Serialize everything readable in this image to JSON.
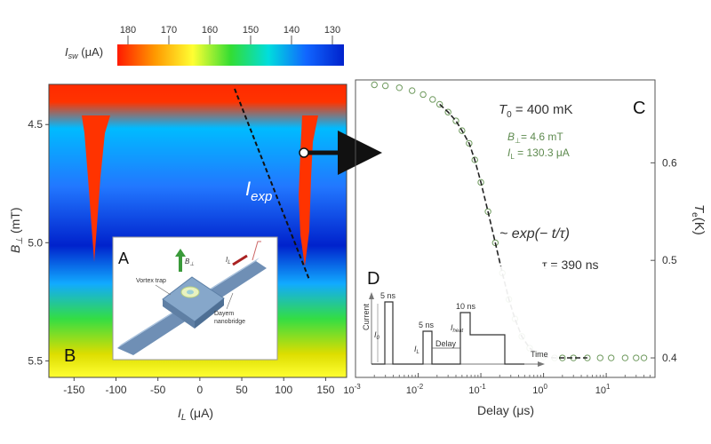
{
  "colorbar": {
    "label": "I",
    "label_sub": "sw",
    "label_unit": " (μA)",
    "ticks": [
      "180",
      "170",
      "160",
      "150",
      "140",
      "130"
    ],
    "stops": [
      "#ff1a00",
      "#ff9900",
      "#ffff33",
      "#33dd33",
      "#00dddd",
      "#1166ff",
      "#0022cc"
    ]
  },
  "left": {
    "panel_label_b": "B",
    "panel_label_a": "A",
    "ylabel": "B",
    "ylabel_sub": "⊥",
    "ylabel_unit": " (mT)",
    "xlabel": "I",
    "xlabel_sub": "L",
    "xlabel_unit": " (μA)",
    "yticks": [
      "4.5",
      "5.0",
      "5.5"
    ],
    "xticks": [
      "-150",
      "-100",
      "-50",
      "0",
      "50",
      "100",
      "150"
    ],
    "fit_label": "I",
    "fit_label_sub": "exp",
    "inset": {
      "vortex_trap": "Vortex trap",
      "dayem": "Dayem",
      "nanobridge": "nanobridge",
      "b_label": "B",
      "b_sub": "⊥",
      "il_label": "I",
      "il_sub": "L"
    }
  },
  "right": {
    "panel_label_c": "C",
    "panel_label_d": "D",
    "t0_text": "T",
    "t0_sub": "0",
    "t0_value": " = 400 mK",
    "b_text": "B",
    "b_sub": "⊥",
    "b_value": "= 4.6 mT",
    "il_text": "I",
    "il_sub": "L",
    "il_value": " = 130.3 μA",
    "exp_text": "~ exp(− t/τ)",
    "tau_text": "τ = 390 ns",
    "xlabel": "Delay (μs)",
    "ylabel": "T",
    "ylabel_sub": "e",
    "ylabel_unit": "(K)",
    "xticks": [
      {
        "base": "10",
        "exp": "-3"
      },
      {
        "base": "10",
        "exp": "-2"
      },
      {
        "base": "10",
        "exp": "-1"
      },
      {
        "base": "10",
        "exp": "0"
      },
      {
        "base": "10",
        "exp": "1"
      }
    ],
    "yticks": [
      "0.4",
      "0.5",
      "0.6"
    ],
    "pulse": {
      "current": "Current",
      "time": "Time",
      "ns5a": "5 ns",
      "ns5b": "5 ns",
      "ns10": "10 ns",
      "delay": "Delay",
      "i0": "I",
      "i0_sub": "0",
      "il": "I",
      "il_sub": "L",
      "iheat": "I",
      "iheat_sub": "heat"
    }
  },
  "chart_data": [
    {
      "type": "heatmap",
      "title": "",
      "xlabel": "I_L (μA)",
      "ylabel": "B_⊥ (mT)",
      "xlim": [
        -180,
        175
      ],
      "ylim": [
        4.33,
        5.57
      ],
      "y_inverted": true,
      "colorbar": {
        "label": "I_sw (μA)",
        "range": [
          180,
          130
        ],
        "reversed": true
      },
      "fit_line": {
        "name": "I_exp",
        "points": [
          [
            80,
            4.35
          ],
          [
            155,
            5.1
          ]
        ]
      },
      "features": [
        {
          "kind": "dip",
          "center_x": -130,
          "bottom_y": 5.05
        },
        {
          "kind": "dip",
          "center_x": 135,
          "bottom_y": 5.05
        }
      ]
    },
    {
      "type": "scatter",
      "title": "",
      "xlabel": "Delay (μs)",
      "ylabel": "T_e (K)",
      "x_scale": "log",
      "xlim": [
        0.001,
        60
      ],
      "ylim": [
        0.38,
        0.685
      ],
      "annotations": [
        "T_0 = 400 mK",
        "B_⊥ = 4.6 mT",
        "I_L = 130.3 μA",
        "τ = 390 ns"
      ],
      "series": [
        {
          "values_x": [
            0.002,
            0.003,
            0.005,
            0.008,
            0.012,
            0.017,
            0.022,
            0.03,
            0.04,
            0.05,
            0.065,
            0.08,
            0.1,
            0.13,
            0.17,
            0.22,
            0.28,
            0.35,
            0.45,
            0.6,
            0.8,
            1.0,
            1.5,
            2.0,
            3.0,
            5.0,
            8.0,
            12.0,
            20.0,
            30.0,
            40.0
          ],
          "values_y": [
            0.68,
            0.679,
            0.677,
            0.674,
            0.67,
            0.665,
            0.66,
            0.652,
            0.643,
            0.633,
            0.62,
            0.603,
            0.58,
            0.55,
            0.518,
            0.487,
            0.46,
            0.44,
            0.422,
            0.41,
            0.404,
            0.401,
            0.4,
            0.4,
            0.4,
            0.4,
            0.4,
            0.4,
            0.4,
            0.4,
            0.4
          ]
        }
      ]
    }
  ]
}
